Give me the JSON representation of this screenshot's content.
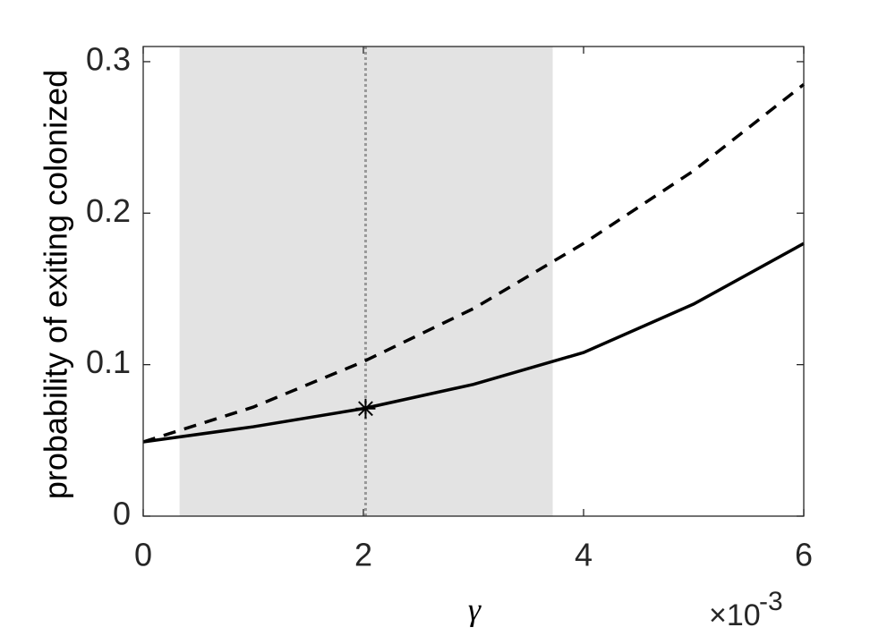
{
  "chart_data": {
    "type": "line",
    "y_label": "probability of exiting colonized",
    "x_label": "γ",
    "x_multiplier": {
      "base": "×10",
      "exponent": "-3"
    },
    "x": [
      0,
      1,
      2,
      3,
      4,
      5,
      6
    ],
    "series": [
      {
        "color": "#000000",
        "dash": "solid",
        "values": [
          0.049,
          0.059,
          0.071,
          0.087,
          0.108,
          0.14,
          0.18
        ]
      },
      {
        "color": "#000000",
        "dash": "dashed",
        "values": [
          0.049,
          0.072,
          0.102,
          0.137,
          0.18,
          0.228,
          0.285
        ]
      }
    ],
    "shaded_region": {
      "x": [
        0.33,
        3.72
      ],
      "color": "#e3e3e3"
    },
    "vline": {
      "x": 2.02,
      "color": "#999999"
    },
    "marker": {
      "x": 2.02,
      "y": 0.071
    },
    "xlim": [
      0,
      6
    ],
    "xticks": [
      0,
      2,
      4,
      6
    ],
    "ylim": [
      0,
      0.31
    ],
    "yticks": [
      0,
      0.1,
      0.2,
      0.3
    ],
    "grid": false
  }
}
